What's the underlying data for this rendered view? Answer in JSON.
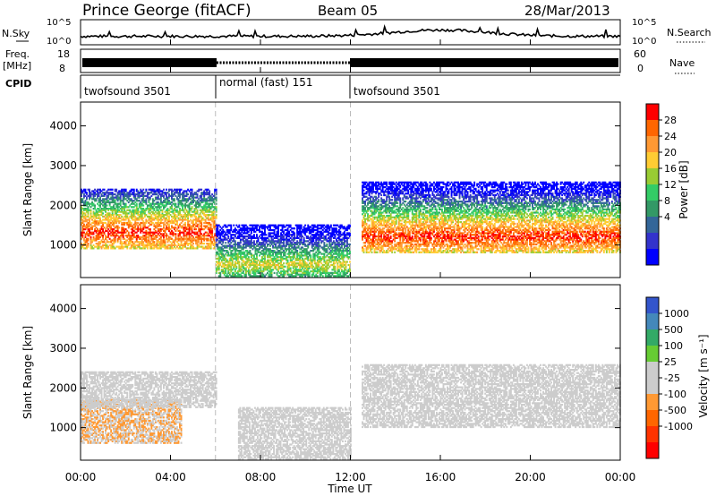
{
  "header": {
    "title": "Prince George (fitACF)",
    "beam": "Beam 05",
    "date": "28/Mar/2013"
  },
  "sky_panel": {
    "left_label": "N.Sky",
    "right_label": "N.Search",
    "left_ticks": [
      "10^5",
      "10^0"
    ],
    "right_ticks": [
      "10^5",
      "10^0"
    ]
  },
  "freq_panel": {
    "left_label_line1": "Freq.",
    "left_label_line2": "[MHz]",
    "right_label": "Nave",
    "left_ticks": [
      "18",
      "8"
    ],
    "right_ticks": [
      "60",
      "0"
    ]
  },
  "cpid": {
    "label": "CPID",
    "segments": [
      {
        "label": "twofsound 3501",
        "start": 0,
        "end": 6
      },
      {
        "label": "normal (fast) 151",
        "start": 6,
        "end": 12
      },
      {
        "label": "twofsound 3501",
        "start": 12,
        "end": 24
      }
    ]
  },
  "x_ticks": [
    "00:00",
    "04:00",
    "08:00",
    "12:00",
    "16:00",
    "20:00",
    "00:00"
  ],
  "x_label": "Time UT",
  "y_label": "Slant Range [km]",
  "y_ticks": [
    "4000",
    "3000",
    "2000",
    "1000"
  ],
  "power_colorbar": {
    "label": "Power [dB]",
    "ticks": [
      "28",
      "24",
      "20",
      "16",
      "12",
      "8",
      "4"
    ],
    "colors": [
      "#ff0000",
      "#ff6600",
      "#ff9933",
      "#ffcc33",
      "#99cc33",
      "#33cc66",
      "#339966",
      "#336699",
      "#3333cc",
      "#0000ff"
    ]
  },
  "velocity_colorbar": {
    "label": "Velocity [m s⁻¹]",
    "ticks": [
      "1000",
      "500",
      "100",
      "25",
      "-25",
      "-100",
      "-500",
      "-1000"
    ],
    "colors": [
      "#3355cc",
      "#4488bb",
      "#33aa66",
      "#66cc33",
      "#cccccc",
      "#cccccc",
      "#ff9933",
      "#ff6600",
      "#ff3300",
      "#ff0000"
    ]
  },
  "chart_data": [
    {
      "type": "heatmap",
      "name": "Power",
      "x_range": [
        0,
        24
      ],
      "y_range": [
        180,
        4600
      ],
      "x_unit": "hours UT",
      "y_unit": "km",
      "colorbar_range": [
        0,
        32
      ],
      "grid": false,
      "features": [
        {
          "t0": 0.0,
          "t1": 6.0,
          "r0": 900,
          "r1": 2400,
          "peak_r": 1300,
          "max_db": 30
        },
        {
          "t0": 6.0,
          "t1": 12.0,
          "r0": 200,
          "r1": 1500,
          "peak_r": 500,
          "max_db": 20
        },
        {
          "t0": 12.5,
          "t1": 24.0,
          "r0": 800,
          "r1": 2600,
          "peak_r": 1200,
          "max_db": 30
        }
      ]
    },
    {
      "type": "heatmap",
      "name": "Velocity",
      "x_range": [
        0,
        24
      ],
      "y_range": [
        180,
        4600
      ],
      "x_unit": "hours UT",
      "y_unit": "km",
      "colorbar_range": [
        -1000,
        1000
      ],
      "grid": false,
      "features": [
        {
          "t0": 0.0,
          "t1": 4.5,
          "r0": 600,
          "r1": 1700,
          "velocity": -200
        },
        {
          "t0": 0.0,
          "t1": 6.0,
          "r0": 1500,
          "r1": 2400,
          "velocity": 0
        },
        {
          "t0": 7.0,
          "t1": 12.0,
          "r0": 200,
          "r1": 1500,
          "velocity": 50
        },
        {
          "t0": 12.5,
          "t1": 24.0,
          "r0": 1000,
          "r1": 2600,
          "velocity": 0
        }
      ]
    }
  ]
}
